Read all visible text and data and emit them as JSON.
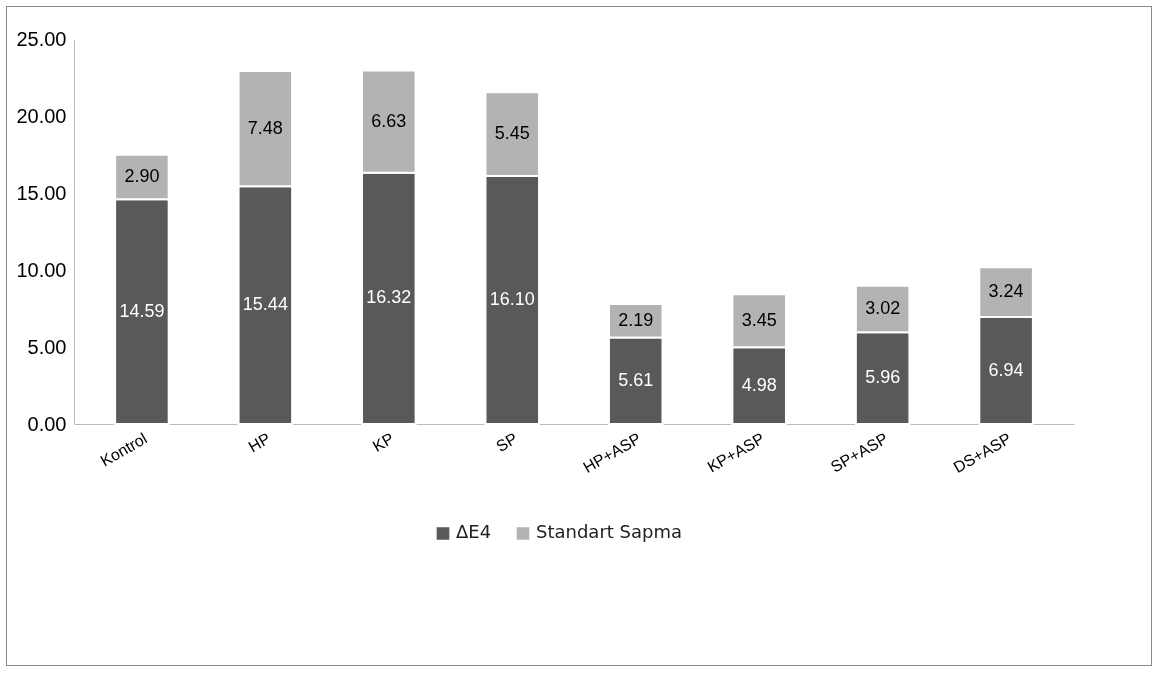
{
  "chart_data": {
    "type": "bar",
    "stacked": true,
    "categories": [
      "Kontrol",
      "HP",
      "KP",
      "SP",
      "HP+ASP",
      "KP+ASP",
      "SP+ASP",
      "DS+ASP"
    ],
    "series": [
      {
        "name": "ΔE4",
        "color": "#595959",
        "values": [
          14.59,
          15.44,
          16.32,
          16.1,
          5.61,
          4.98,
          5.96,
          6.94
        ],
        "value_labels": [
          "14.59",
          "15.44",
          "16.32",
          "16.10",
          "5.61",
          "4.98",
          "5.96",
          "6.94"
        ]
      },
      {
        "name": "Standart Sapma",
        "color": "#b3b3b3",
        "values": [
          2.9,
          7.48,
          6.63,
          5.45,
          2.19,
          3.45,
          3.02,
          3.24
        ],
        "value_labels": [
          "2.90",
          "7.48",
          "6.63",
          "5.45",
          "2.19",
          "3.45",
          "3.02",
          "3.24"
        ]
      }
    ],
    "ylim": [
      0,
      25
    ],
    "yticks": [
      {
        "value": 0,
        "label": "0.00"
      },
      {
        "value": 5,
        "label": "5.00"
      },
      {
        "value": 10,
        "label": "10.00"
      },
      {
        "value": 15,
        "label": "15.00"
      },
      {
        "value": 20,
        "label": "20.00"
      },
      {
        "value": 25,
        "label": "25.00"
      }
    ],
    "legend": "bottom",
    "grid": false
  }
}
